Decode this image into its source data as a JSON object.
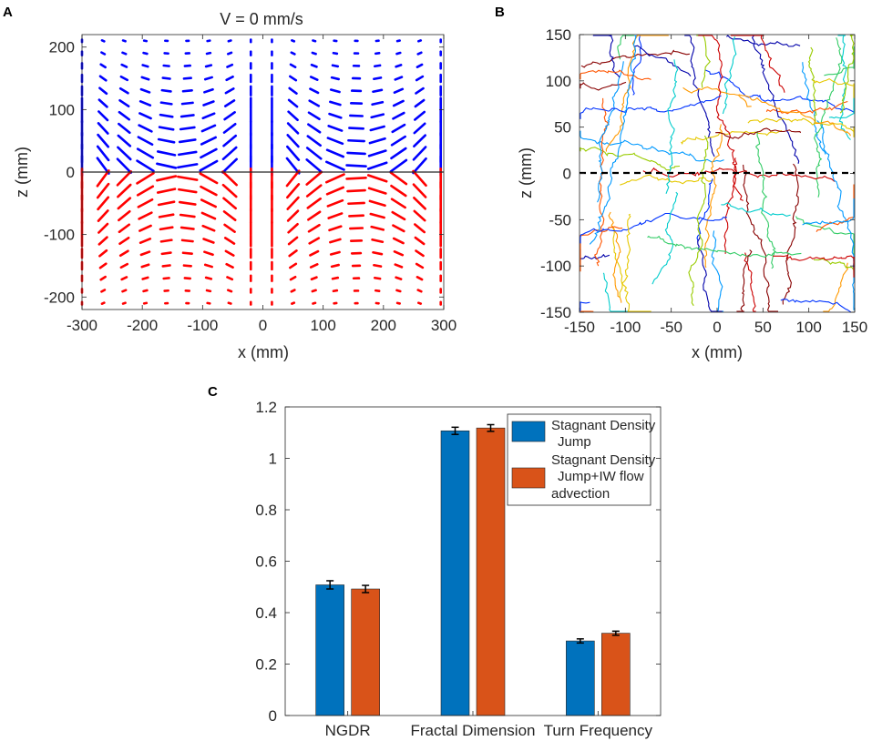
{
  "panels": [
    {
      "letter": "A",
      "title": "V = 0 mm/s",
      "xlabel": "x (mm)",
      "ylabel": "z (mm)",
      "xticks": [
        "-300",
        "-200",
        "-100",
        "0",
        "100",
        "200",
        "300"
      ],
      "yticks": [
        "200",
        "100",
        "0",
        "-100",
        "-200"
      ]
    },
    {
      "letter": "B",
      "xlabel": "x (mm)",
      "ylabel": "z (mm)",
      "xticks": [
        "-150",
        "-100",
        "-50",
        "0",
        "50",
        "100",
        "150"
      ],
      "yticks": [
        "150",
        "100",
        "50",
        "0",
        "-50",
        "-100",
        "-150"
      ]
    },
    {
      "letter": "C",
      "yticks": [
        "1.2",
        "1",
        "0.8",
        "0.6",
        "0.4",
        "0.2",
        "0"
      ],
      "legend": [
        {
          "lines": [
            "Stagnant Density",
            "Jump"
          ],
          "color": "#0072BD"
        },
        {
          "lines": [
            "Stagnant Density",
            "Jump+IW flow",
            "advection"
          ],
          "color": "#D95319"
        }
      ]
    }
  ],
  "chart_data": [
    {
      "type": "quiver",
      "title": "V = 0 mm/s",
      "xlabel": "x (mm)",
      "ylabel": "z (mm)",
      "xlim": [
        -300,
        300
      ],
      "ylim": [
        -220,
        220
      ],
      "upper_color": "#0000ff",
      "lower_color": "#ff0000",
      "x_grid": [
        -300,
        -265,
        -230,
        -195,
        -160,
        -125,
        -90,
        -55,
        -20,
        15,
        50,
        85,
        120,
        155,
        190,
        225,
        260,
        295
      ],
      "z_grid_upper": [
        210,
        190,
        170,
        150,
        130,
        110,
        90,
        70,
        50,
        30,
        10
      ],
      "z_grid_lower": [
        -10,
        -30,
        -50,
        -70,
        -90,
        -110,
        -130,
        -150,
        -170,
        -190,
        -210
      ]
    },
    {
      "type": "line",
      "description_free": true,
      "xlabel": "x (mm)",
      "ylabel": "z (mm)",
      "xlim": [
        -150,
        150
      ],
      "ylim": [
        -150,
        150
      ],
      "reference_line_z": 0,
      "track_colors": [
        "#0000aa",
        "#0033ff",
        "#0099ff",
        "#00cccc",
        "#33cc66",
        "#99cc00",
        "#e6c800",
        "#ff9900",
        "#ff5500",
        "#cc0000",
        "#880000"
      ]
    },
    {
      "type": "bar",
      "categories": [
        "NGDR",
        "Fractal Dimension",
        "Turn Frequency"
      ],
      "ylim": [
        0,
        1.2
      ],
      "series": [
        {
          "name": "Stagnant Density Jump",
          "values": [
            0.508,
            1.107,
            0.29
          ],
          "errors": [
            0.016,
            0.014,
            0.008
          ],
          "color": "#0072BD"
        },
        {
          "name": "Stagnant Density Jump+IW flow advection",
          "values": [
            0.492,
            1.118,
            0.32
          ],
          "errors": [
            0.014,
            0.013,
            0.008
          ],
          "color": "#D95319"
        }
      ]
    }
  ]
}
